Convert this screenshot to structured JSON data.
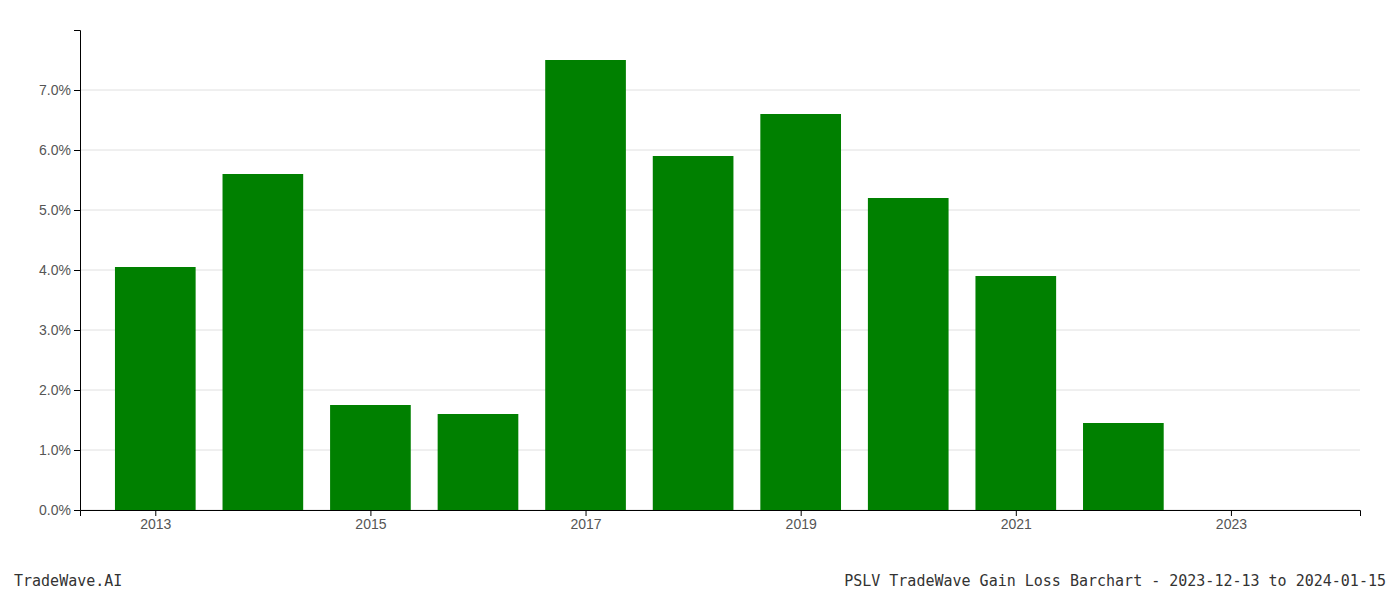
{
  "chart_data": {
    "type": "bar",
    "title": "PSLV TradeWave Gain Loss Barchart - 2023-12-13 to 2024-01-15",
    "annotations": [
      "TradeWave.AI"
    ],
    "x": [
      2013,
      2014,
      2015,
      2016,
      2017,
      2018,
      2019,
      2020,
      2021,
      2022
    ],
    "values": [
      0.0405,
      0.056,
      0.0175,
      0.016,
      0.075,
      0.059,
      0.066,
      0.052,
      0.039,
      0.0145
    ],
    "color": "#008000",
    "xlim": [
      2012.3,
      2024.2
    ],
    "xticks": [
      2013,
      2015,
      2017,
      2019,
      2021,
      2023
    ],
    "ylim": [
      0,
      0.08
    ],
    "yticks": [
      {
        "value": 0.0,
        "label": "0.0%"
      },
      {
        "value": 0.01,
        "label": "1.0%"
      },
      {
        "value": 0.02,
        "label": "2.0%"
      },
      {
        "value": 0.03,
        "label": "3.0%"
      },
      {
        "value": 0.04,
        "label": "4.0%"
      },
      {
        "value": 0.05,
        "label": "5.0%"
      },
      {
        "value": 0.06,
        "label": "6.0%"
      },
      {
        "value": 0.07,
        "label": "7.0%"
      }
    ],
    "grid": true
  }
}
